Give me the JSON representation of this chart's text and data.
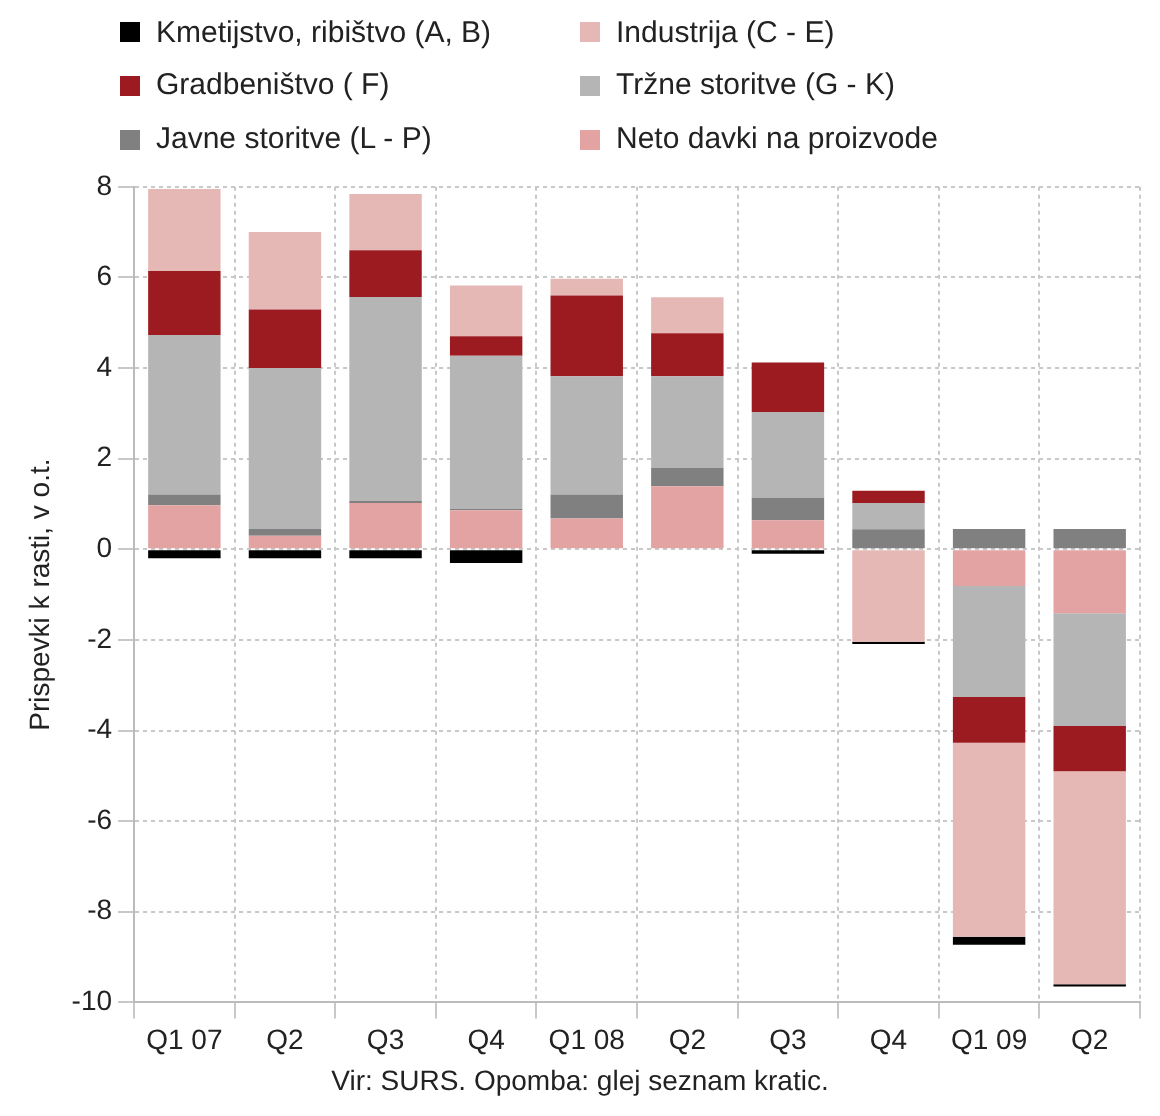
{
  "chart_data": {
    "type": "bar",
    "stacked": true,
    "ylabel": "Prispevki k rasti, v o.t.",
    "categories": [
      "Q1 07",
      "Q2",
      "Q3",
      "Q4",
      "Q1 08",
      "Q2",
      "Q3",
      "Q4",
      "Q1 09",
      "Q2"
    ],
    "series": [
      {
        "name": "Neto davki na proizvode",
        "color": "#e3a3a3",
        "values": [
          0.97,
          0.3,
          1.02,
          0.86,
          0.68,
          1.39,
          0.64,
          0,
          -0.81,
          -1.41
        ]
      },
      {
        "name": "Javne storitve (L - P)",
        "color": "#808080",
        "values": [
          0.24,
          0.15,
          0.05,
          0.03,
          0.53,
          0.41,
          0.5,
          0.44,
          0.45,
          0.45
        ]
      },
      {
        "name": "Tržne storitve (G - K)",
        "color": "#b5b5b5",
        "values": [
          3.52,
          3.55,
          4.5,
          3.38,
          2.61,
          2.02,
          1.89,
          0.58,
          -2.45,
          -2.49
        ]
      },
      {
        "name": "Gradbeništvo ( F)",
        "color": "#9c1b20",
        "values": [
          1.41,
          1.29,
          1.03,
          0.43,
          1.78,
          0.95,
          1.09,
          0.27,
          -1.01,
          -1.0
        ]
      },
      {
        "name": "Industrija (C - E)",
        "color": "#e5b8b5",
        "values": [
          1.81,
          1.71,
          1.24,
          1.12,
          0.37,
          0.79,
          0,
          -2.04,
          -4.28,
          -4.7
        ]
      },
      {
        "name": "Kmetijstvo, ribištvo (A, B)",
        "color": "#000000",
        "values": [
          -0.2,
          -0.2,
          -0.2,
          -0.3,
          0,
          0,
          -0.1,
          -0.05,
          -0.18,
          -0.05
        ]
      }
    ],
    "ylim": [
      -10,
      8
    ],
    "yticks": [
      -10,
      -8,
      -6,
      -4,
      -2,
      0,
      2,
      4,
      6,
      8
    ],
    "grid": true,
    "legend": "top",
    "annotations": [
      "Vir: SURS. Opomba: glej seznam kratic."
    ]
  }
}
